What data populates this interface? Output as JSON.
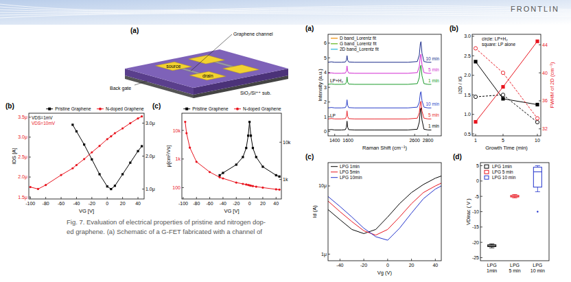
{
  "header": {
    "title": "FRONTLIN"
  },
  "schematic": {
    "label": "(a)",
    "source": "source",
    "drain": "drain",
    "channel": "Graphene channel",
    "substrate": "SiO₂/Si⁺⁺ sub.",
    "gate": "Back gate"
  },
  "caption": [
    "Fig. 7. Evaluation of electrical properties of pristine and nitrogen dop-",
    "ed graphene. (a) Schematic of a G-FET fabricated with a channel of"
  ],
  "chart_data": [
    {
      "type": "line",
      "title": "(b)",
      "x_label": "VG [V]",
      "y_label": "IDS [A]",
      "x": [
        -100,
        -90,
        -80,
        -60,
        -45,
        -40,
        -30,
        -20,
        -10,
        0,
        5,
        10,
        20,
        30,
        40,
        45
      ],
      "xlim": [
        -102,
        48
      ],
      "xticks": [
        -100,
        -80,
        -60,
        -40,
        -20,
        0,
        20,
        40
      ],
      "ylim": [
        1.45e-06,
        3.6e-06
      ],
      "yticks": [
        {
          "value": 1.5e-06,
          "label": "1.5μ"
        },
        {
          "value": 2e-06,
          "label": "2.0μ"
        },
        {
          "value": 2.5e-06,
          "label": "2.5μ"
        },
        {
          "value": 3e-06,
          "label": "3.0μ"
        },
        {
          "value": 3.5e-06,
          "label": "3.5μ"
        }
      ],
      "y2lim": [
        7e-07,
        3.3e-06
      ],
      "y2ticks": [
        {
          "value": 1e-06,
          "label": "1.0μ"
        },
        {
          "value": 2e-06,
          "label": "2.0μ"
        },
        {
          "value": 3e-06,
          "label": "3.0μ"
        }
      ],
      "legend": "top",
      "annotations": [
        {
          "text": "VDS=1mV",
          "color": "#000000"
        },
        {
          "text": "VDS=10mV",
          "color": "#e8141e"
        }
      ],
      "series": [
        {
          "name": "Pristine Graphene",
          "color": "#000000",
          "marker": "square",
          "axis": "y2",
          "values": [
            null,
            null,
            null,
            null,
            2.95e-06,
            2.75e-06,
            2.35e-06,
            1.9e-06,
            1.45e-06,
            1.08e-06,
            1e-06,
            1.1e-06,
            1.45e-06,
            1.8e-06,
            2.15e-06,
            2.3e-06
          ]
        },
        {
          "name": "N-doped Graphene",
          "color": "#e8141e",
          "marker": "circle",
          "values": [
            1.75e-06,
            1.7e-06,
            1.8e-06,
            2.05e-06,
            2.22e-06,
            2.3e-06,
            2.45e-06,
            2.62e-06,
            2.78e-06,
            2.95e-06,
            3.02e-06,
            3.1e-06,
            3.22e-06,
            3.35e-06,
            3.47e-06,
            3.52e-06
          ]
        }
      ]
    },
    {
      "type": "line",
      "title": "(c)",
      "x_label": "VG [V]",
      "y_label": "μ[cm²/Vs]",
      "log": "y",
      "x": [
        -100,
        -97,
        -95,
        -90,
        -80,
        -60,
        -45,
        -40,
        -20,
        -10,
        -5,
        -2,
        0,
        2,
        5,
        10,
        20,
        40,
        45
      ],
      "xlim": [
        -102,
        48
      ],
      "xticks": [
        -100,
        -80,
        -60,
        -40,
        -20,
        0,
        20,
        40
      ],
      "ylim": [
        40,
        40000
      ],
      "yticks": [
        100,
        {
          "value": 1000,
          "label": "1k"
        },
        {
          "value": 10000,
          "label": "10k"
        }
      ],
      "y2lim": [
        300,
        60000
      ],
      "y2ticks": [
        {
          "value": 1000,
          "label": "1k"
        },
        {
          "value": 10000,
          "label": "10k"
        }
      ],
      "legend": "top",
      "series": [
        {
          "name": "Pristine Graphene",
          "color": "#000000",
          "marker": "square",
          "axis": "y2",
          "values": [
            null,
            null,
            null,
            null,
            null,
            null,
            1300,
            1500,
            2500,
            4000,
            7000,
            15000,
            35000,
            15000,
            7000,
            4000,
            2200,
            1300,
            1200
          ]
        },
        {
          "name": "N-doped Graphene",
          "color": "#e8141e",
          "marker": "circle",
          "values": [
            null,
            20000,
            8000,
            2500,
            800,
            350,
            230,
            210,
            150,
            135,
            128,
            124,
            120,
            117,
            113,
            108,
            100,
            87,
            85
          ]
        }
      ]
    },
    {
      "type": "line",
      "title": "(a)",
      "x_label": "Raman Shift (cm⁻¹)",
      "y_label": "Intensity (a.u.)",
      "x": [
        1300,
        1350,
        1400,
        1500,
        1560,
        1575,
        1585,
        1595,
        1610,
        1700,
        2000,
        2500,
        2640,
        2670,
        2685,
        2695,
        2710,
        2740,
        2800,
        2850
      ],
      "xlim": [
        1300,
        3000
      ],
      "xticks": [
        1400,
        1600,
        2600,
        2800
      ],
      "ylim": [
        -0.3,
        6.6
      ],
      "yticks": [
        0,
        1,
        2,
        3,
        4,
        5,
        6
      ],
      "legend": "inline",
      "fits": [
        {
          "name": "D band_Lorentz fit",
          "color": "#f0a030"
        },
        {
          "name": "G band_Lorentz fit",
          "color": "#7cc242"
        },
        {
          "name": "2D band_Lorentz fit",
          "color": "#4fc3e0"
        }
      ],
      "annotations": [
        {
          "text": "LP+H₂",
          "color": "#000000"
        },
        {
          "text": "LP",
          "color": "#000000"
        }
      ],
      "series": [
        {
          "name": "1 min",
          "color": "#000000",
          "values": [
            0.1,
            0.13,
            0.1,
            0.1,
            0.12,
            0.28,
            0.7,
            0.28,
            0.12,
            0.1,
            0.1,
            0.1,
            0.15,
            0.63,
            1.45,
            1.6,
            0.78,
            0.15,
            0.1,
            0.1
          ]
        },
        {
          "name": "5 min",
          "color": "#e8242a",
          "values": [
            0.85,
            0.88,
            0.85,
            0.85,
            0.87,
            1.02,
            1.4,
            1.02,
            0.87,
            0.85,
            0.85,
            0.85,
            0.9,
            1.27,
            1.93,
            2.05,
            1.39,
            0.9,
            0.85,
            0.85
          ]
        },
        {
          "name": "10 min",
          "color": "#2a3ec8",
          "values": [
            1.6,
            1.63,
            1.6,
            1.6,
            1.62,
            1.77,
            2.15,
            1.77,
            1.62,
            1.6,
            1.6,
            1.6,
            1.65,
            1.99,
            2.59,
            2.7,
            2.1,
            1.65,
            1.6,
            1.6
          ]
        },
        {
          "name": "1 min",
          "color": "#1a9a2a",
          "values": [
            3.2,
            3.23,
            3.2,
            3.2,
            3.22,
            3.35,
            3.7,
            3.35,
            3.22,
            3.2,
            3.2,
            3.2,
            3.25,
            3.66,
            4.37,
            4.5,
            3.79,
            3.25,
            3.2,
            3.2
          ]
        },
        {
          "name": "5 min",
          "color": "#d02ad0",
          "values": [
            3.95,
            3.98,
            3.95,
            3.95,
            3.97,
            4.1,
            4.45,
            4.1,
            3.97,
            3.95,
            3.95,
            3.95,
            4.0,
            4.41,
            5.12,
            5.25,
            4.54,
            4.0,
            3.95,
            3.95
          ]
        },
        {
          "name": "10 min",
          "color": "#1a2a8a",
          "values": [
            4.7,
            4.73,
            4.7,
            4.7,
            4.72,
            4.84,
            5.15,
            4.84,
            4.72,
            4.7,
            4.7,
            4.7,
            4.75,
            5.19,
            5.96,
            6.1,
            5.33,
            4.75,
            4.7,
            4.7
          ]
        }
      ]
    },
    {
      "type": "line",
      "title": "(b)",
      "x_label": "Growth Time (min)",
      "y_label": "I2D / IG",
      "y2_label": "FWHM of 2D (cm⁻¹)",
      "x": [
        1,
        5,
        10
      ],
      "xlim": [
        0.5,
        10.5
      ],
      "xticks": [
        1,
        5,
        10
      ],
      "ylim": [
        0.45,
        3.05
      ],
      "yticks": [
        0.5,
        {
          "value": 1,
          "label": "1.0"
        },
        1.5,
        {
          "value": 2,
          "label": "2.0"
        },
        2.5,
        {
          "value": 3,
          "label": "3.0"
        }
      ],
      "y2lim": [
        31,
        45.5
      ],
      "y2ticks": [
        32,
        36,
        40,
        44
      ],
      "annotations": [
        {
          "text": "circle: LP+H₂",
          "color": "#000000"
        },
        {
          "text": "square: LP alone",
          "color": "#000000"
        }
      ],
      "series": [
        {
          "color": "#000000",
          "marker": "square",
          "line_style": "solid",
          "values": [
            2.35,
            1.4,
            1.25
          ]
        },
        {
          "color": "#000000",
          "marker": "open-circle",
          "line_style": "dashed",
          "values": [
            1.45,
            1.5,
            0.8
          ]
        },
        {
          "color": "#e8141e",
          "marker": "square",
          "line_style": "solid",
          "axis": "y2",
          "values": [
            33.0,
            38.0,
            44.5
          ]
        },
        {
          "color": "#e8141e",
          "marker": "open-circle",
          "line_style": "dashed",
          "axis": "y2",
          "values": [
            43.5,
            40.0,
            33.5
          ]
        }
      ]
    },
    {
      "type": "line",
      "title": "(c)",
      "x_label": "Vg (V)",
      "y_label": "Id (A)",
      "log": "y",
      "x": [
        -50,
        -40,
        -30,
        -20,
        -10,
        0,
        10,
        20,
        30,
        40,
        45
      ],
      "xlim": [
        -50,
        45
      ],
      "xticks": [
        -40,
        -20,
        0,
        20,
        40
      ],
      "ylim": [
        8e-07,
        2.2e-05
      ],
      "yticks": [
        {
          "value": 1e-06,
          "label": "1μ"
        },
        {
          "value": 1e-05,
          "label": "10μ"
        }
      ],
      "legend": "top-left",
      "series": [
        {
          "name": "LPG 1min",
          "color": "#000000",
          "values": [
            4.5e-06,
            3.2e-06,
            2.3e-06,
            2e-06,
            2.3e-06,
            3.5e-06,
            5.5e-06,
            8e-06,
            1.05e-05,
            1.3e-05,
            1.4e-05
          ]
        },
        {
          "name": "LPG 5min",
          "color": "#e8141e",
          "values": [
            6e-06,
            4.2e-06,
            3e-06,
            2.2e-06,
            1.9e-06,
            2.3e-06,
            3.5e-06,
            5.5e-06,
            8e-06,
            1e-05,
            1.1e-05
          ]
        },
        {
          "name": "LPG 10min",
          "color": "#2233cc",
          "values": [
            7e-06,
            5e-06,
            3.5e-06,
            2.4e-06,
            1.8e-06,
            1.6e-06,
            2.4e-06,
            4e-06,
            6.5e-06,
            9e-06,
            1e-05
          ]
        }
      ]
    },
    {
      "type": "box",
      "title": "(d)",
      "y_label": "VDirac ( V )",
      "categories": [
        "LPG 1min",
        "LPG 5 min",
        "LPG 10 min"
      ],
      "colors": [
        "#000000",
        "#e8141e",
        "#2233cc"
      ],
      "values": [
        [
          -21.8,
          -21.4,
          -21.1,
          -20.8,
          -20.5
        ],
        [
          -5.5,
          -5.2,
          -5.0,
          -4.7,
          -4.4
        ],
        [
          -3.5,
          -2.0,
          3.0,
          4.5,
          5.0
        ]
      ],
      "outliers": [
        [],
        [],
        [
          -10
        ]
      ],
      "ylim": [
        -26,
        6
      ],
      "yticks": [
        -25,
        -20,
        -15,
        -10,
        -5,
        0,
        5
      ],
      "legend": "top-left"
    }
  ]
}
